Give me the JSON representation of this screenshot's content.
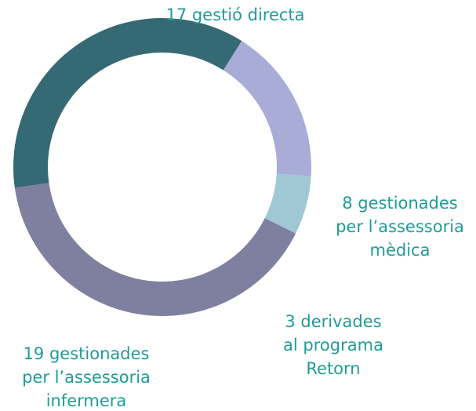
{
  "chart_data": {
    "type": "donut",
    "values": [
      17,
      8,
      3,
      19
    ],
    "value_labels": [
      [
        "17 gestió directa"
      ],
      [
        "8 gestionades",
        "per l’assessoria",
        "mèdica"
      ],
      [
        "3 derivades",
        "al programa",
        "Retorn"
      ],
      [
        "19 gestionades",
        "per l’assessoria",
        "infermera"
      ]
    ],
    "colors": [
      "#356a74",
      "#a9acd6",
      "#9fc8d4",
      "#7f7f9f"
    ],
    "label_color": "#1e9c98"
  }
}
